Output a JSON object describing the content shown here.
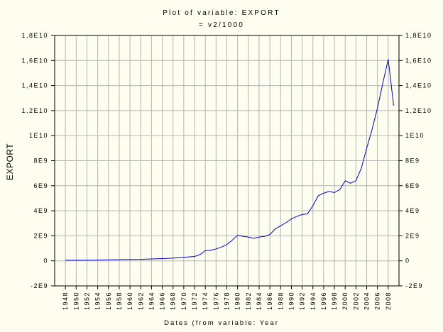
{
  "chart_data": {
    "type": "line",
    "title": "Plot of variable: EXPORT",
    "subtitle": "= v2/1000",
    "xlabel": "Dates (from variable: Year",
    "ylabel": "EXPORT",
    "ylim": [
      -2000000000,
      18000000000
    ],
    "xlim": [
      1946,
      2010
    ],
    "grid": true,
    "y_ticks": [
      {
        "value": -2000000000,
        "label": "-2E9"
      },
      {
        "value": 0,
        "label": "0"
      },
      {
        "value": 2000000000,
        "label": "2E9"
      },
      {
        "value": 4000000000,
        "label": "4E9"
      },
      {
        "value": 6000000000,
        "label": "6E9"
      },
      {
        "value": 8000000000,
        "label": "8E9"
      },
      {
        "value": 10000000000,
        "label": "1E10"
      },
      {
        "value": 12000000000,
        "label": "1,2E10"
      },
      {
        "value": 14000000000,
        "label": "1,4E10"
      },
      {
        "value": 16000000000,
        "label": "1,6E10"
      },
      {
        "value": 18000000000,
        "label": "1,8E10"
      }
    ],
    "x_ticks": [
      {
        "value": 1948,
        "label": "1948"
      },
      {
        "value": 1950,
        "label": "1950"
      },
      {
        "value": 1952,
        "label": "1952"
      },
      {
        "value": 1954,
        "label": "1954"
      },
      {
        "value": 1956,
        "label": "1956"
      },
      {
        "value": 1958,
        "label": "1958"
      },
      {
        "value": 1960,
        "label": "1960"
      },
      {
        "value": 1962,
        "label": "1962"
      },
      {
        "value": 1964,
        "label": "1964"
      },
      {
        "value": 1966,
        "label": "1966"
      },
      {
        "value": 1968,
        "label": "1968"
      },
      {
        "value": 1970,
        "label": "1970"
      },
      {
        "value": 1972,
        "label": "1972"
      },
      {
        "value": 1974,
        "label": "1974"
      },
      {
        "value": 1976,
        "label": "1976"
      },
      {
        "value": 1978,
        "label": "1978"
      },
      {
        "value": 1980,
        "label": "1980"
      },
      {
        "value": 1982,
        "label": "1982"
      },
      {
        "value": 1984,
        "label": "1984"
      },
      {
        "value": 1986,
        "label": "1986"
      },
      {
        "value": 1988,
        "label": "1988"
      },
      {
        "value": 1990,
        "label": "1990"
      },
      {
        "value": 1992,
        "label": "1992"
      },
      {
        "value": 1994,
        "label": "1994"
      },
      {
        "value": 1996,
        "label": "1996"
      },
      {
        "value": 1998,
        "label": "1998"
      },
      {
        "value": 2000,
        "label": "2000"
      },
      {
        "value": 2002,
        "label": "2002"
      },
      {
        "value": 2004,
        "label": "2004"
      },
      {
        "value": 2006,
        "label": "2006"
      },
      {
        "value": 2008,
        "label": "2008"
      }
    ],
    "series": [
      {
        "color": "#0000cc",
        "x": [
          1948,
          1950,
          1952,
          1954,
          1956,
          1958,
          1960,
          1962,
          1964,
          1966,
          1968,
          1970,
          1972,
          1973,
          1974,
          1975,
          1976,
          1977,
          1978,
          1979,
          1980,
          1981,
          1982,
          1983,
          1984,
          1985,
          1986,
          1987,
          1988,
          1989,
          1990,
          1991,
          1992,
          1993,
          1994,
          1995,
          1996,
          1997,
          1998,
          1999,
          2000,
          2001,
          2002,
          2003,
          2004,
          2005,
          2006,
          2007,
          2008,
          2009
        ],
        "values": [
          50000000,
          50000000,
          50000000,
          60000000,
          80000000,
          100000000,
          110000000,
          120000000,
          150000000,
          180000000,
          220000000,
          280000000,
          350000000,
          500000000,
          820000000,
          850000000,
          950000000,
          1100000000,
          1300000000,
          1650000000,
          2050000000,
          1950000000,
          1900000000,
          1800000000,
          1900000000,
          1950000000,
          2100000000,
          2550000000,
          2800000000,
          3050000000,
          3350000000,
          3550000000,
          3700000000,
          3750000000,
          4400000000,
          5200000000,
          5400000000,
          5550000000,
          5450000000,
          5700000000,
          6400000000,
          6200000000,
          6400000000,
          7400000000,
          9000000000,
          10500000000,
          12200000000,
          14200000000,
          16100000000,
          12400000000
        ]
      }
    ]
  }
}
